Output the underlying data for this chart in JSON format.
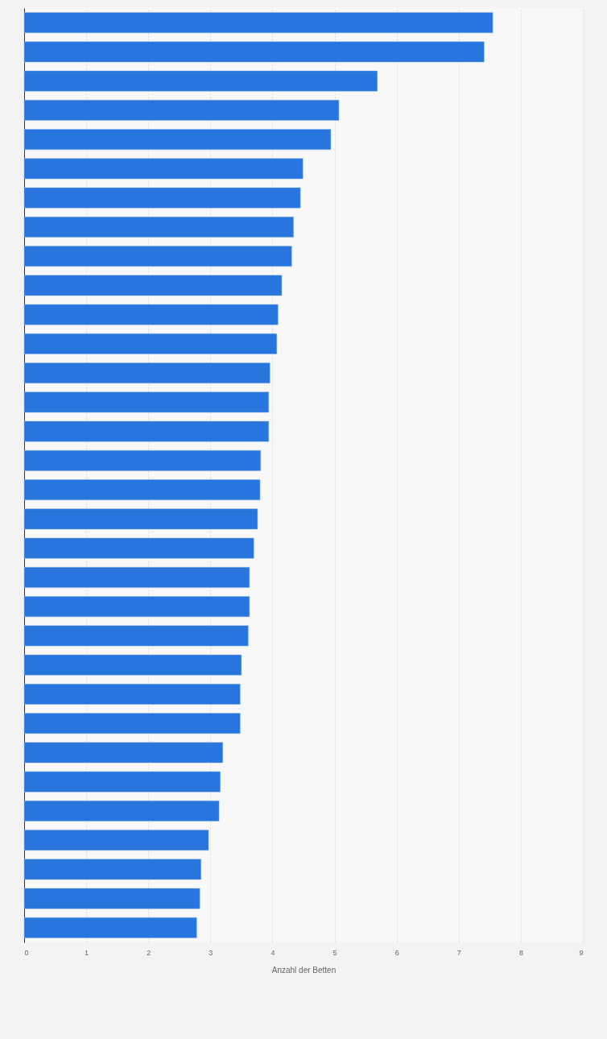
{
  "chart_data": {
    "type": "bar",
    "orientation": "horizontal",
    "xlabel": "Anzahl der Betten",
    "categories": [
      null,
      null,
      null,
      null,
      null,
      null,
      null,
      null,
      null,
      null,
      null,
      null,
      null,
      null,
      null,
      null,
      null,
      null,
      null,
      null,
      null,
      null,
      null,
      null,
      null,
      null,
      null,
      null,
      null,
      null,
      null,
      null
    ],
    "values": [
      7.55,
      7.41,
      5.69,
      5.07,
      4.94,
      4.49,
      4.45,
      4.34,
      4.31,
      4.15,
      4.09,
      4.07,
      3.96,
      3.94,
      3.94,
      3.81,
      3.8,
      3.76,
      3.7,
      3.63,
      3.63,
      3.61,
      3.5,
      3.48,
      3.48,
      3.2,
      3.16,
      3.14,
      2.97,
      2.85,
      2.83,
      2.78
    ],
    "color": "#2876dd",
    "xlim": [
      0,
      9
    ],
    "xticks": [
      0,
      1,
      2,
      3,
      4,
      5,
      6,
      7,
      8,
      9
    ],
    "grid": "x",
    "tick_labels": "x"
  }
}
